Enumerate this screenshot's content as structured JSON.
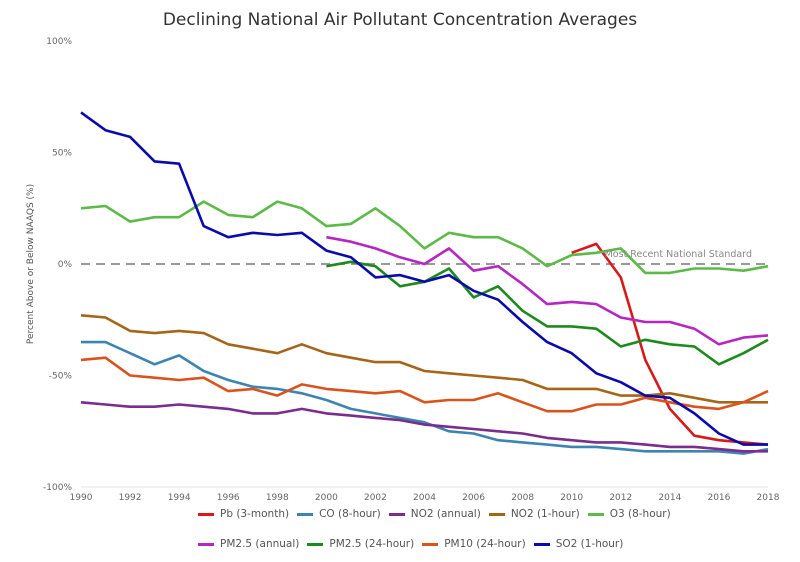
{
  "chart_data": {
    "type": "line",
    "title": "Declining National Air Pollutant Concentration Averages",
    "xlabel": "",
    "ylabel": "Percent Above or Below NAAQS (%)",
    "ylim": [
      -100,
      100
    ],
    "xlim": [
      1990,
      2018
    ],
    "yticks": [
      "100%",
      "50%",
      "0%",
      "-50%",
      "-100%"
    ],
    "ytick_values": [
      100,
      50,
      0,
      -50,
      -100
    ],
    "xticks": [
      1990,
      1992,
      1994,
      1996,
      1998,
      2000,
      2002,
      2004,
      2006,
      2008,
      2010,
      2012,
      2014,
      2016,
      2018
    ],
    "grid": false,
    "reference_line": {
      "value": 0,
      "label": "Most Recent National Standard",
      "color": "#999999"
    },
    "legend_position": "bottom",
    "series": [
      {
        "name": "Pb (3-month)",
        "color": "#d7191c",
        "start": 2010,
        "values": [
          5,
          9,
          -6,
          -43,
          -65,
          -77,
          -79,
          -80,
          -81
        ]
      },
      {
        "name": "CO (8-hour)",
        "color": "#3d85b0",
        "start": 1990,
        "values": [
          -35,
          -35,
          -40,
          -45,
          -41,
          -48,
          -52,
          -55,
          -56,
          -58,
          -61,
          -65,
          -67,
          -69,
          -71,
          -75,
          -76,
          -79,
          -80,
          -81,
          -82,
          -82,
          -83,
          -84,
          -84,
          -84,
          -84,
          -85,
          -83
        ]
      },
      {
        "name": "NO2 (annual)",
        "color": "#7b2d8e",
        "start": 1990,
        "values": [
          -62,
          -63,
          -64,
          -64,
          -63,
          -64,
          -65,
          -67,
          -67,
          -65,
          -67,
          -68,
          -69,
          -70,
          -72,
          -73,
          -74,
          -75,
          -76,
          -78,
          -79,
          -80,
          -80,
          -81,
          -82,
          -82,
          -83,
          -84,
          -84
        ]
      },
      {
        "name": "NO2 (1-hour)",
        "color": "#a6661a",
        "start": 1990,
        "values": [
          -23,
          -24,
          -30,
          -31,
          -30,
          -31,
          -36,
          -38,
          -40,
          -36,
          -40,
          -42,
          -44,
          -44,
          -48,
          -49,
          -50,
          -51,
          -52,
          -56,
          -56,
          -56,
          -59,
          -59,
          -58,
          -60,
          -62,
          -62,
          -62
        ]
      },
      {
        "name": "O3 (8-hour)",
        "color": "#5cba47",
        "start": 1990,
        "values": [
          25,
          26,
          19,
          21,
          21,
          28,
          22,
          21,
          28,
          25,
          17,
          18,
          25,
          17,
          7,
          14,
          12,
          12,
          7,
          -1,
          4,
          5,
          7,
          -4,
          -4,
          -2,
          -2,
          -3,
          -1
        ]
      },
      {
        "name": "PM2.5 (annual)",
        "color": "#b526c2",
        "start": 2000,
        "values": [
          12,
          10,
          7,
          3,
          0,
          7,
          -3,
          -1,
          -9,
          -18,
          -17,
          -18,
          -24,
          -26,
          -26,
          -29,
          -36,
          -33,
          -32
        ]
      },
      {
        "name": "PM2.5 (24-hour)",
        "color": "#1e8a1e",
        "start": 2000,
        "values": [
          -1,
          1,
          -1,
          -10,
          -8,
          -2,
          -15,
          -10,
          -21,
          -28,
          -28,
          -29,
          -37,
          -34,
          -36,
          -37,
          -45,
          -40,
          -34
        ]
      },
      {
        "name": "PM10 (24-hour)",
        "color": "#d9531e",
        "start": 1990,
        "values": [
          -43,
          -42,
          -50,
          -51,
          -52,
          -51,
          -57,
          -56,
          -59,
          -54,
          -56,
          -57,
          -58,
          -57,
          -62,
          -61,
          -61,
          -58,
          -62,
          -66,
          -66,
          -63,
          -63,
          -60,
          -62,
          -64,
          -65,
          -62,
          -57
        ]
      },
      {
        "name": "SO2 (1-hour)",
        "color": "#0a0aad",
        "start": 1990,
        "values": [
          68,
          60,
          57,
          46,
          45,
          17,
          12,
          14,
          13,
          14,
          6,
          3,
          -6,
          -5,
          -8,
          -5,
          -12,
          -16,
          -26,
          -35,
          -40,
          -49,
          -53,
          -59,
          -60,
          -67,
          -76,
          -81,
          -81
        ]
      }
    ],
    "legend_rows": [
      [
        0,
        1,
        2,
        3,
        4
      ],
      [
        5,
        6,
        7,
        8
      ]
    ]
  }
}
